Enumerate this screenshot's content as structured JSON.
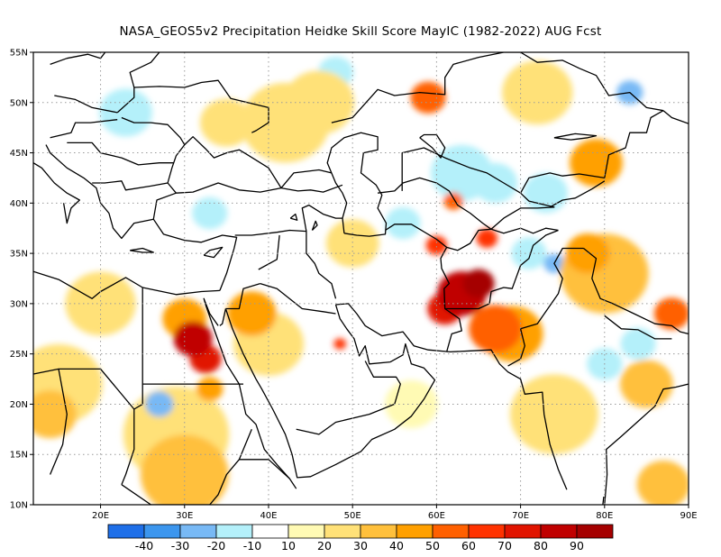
{
  "title": "NASA_GEOS5v2  Precipitation Heidke Skill Score MayIC (1982-2022) AUG Fcst",
  "map": {
    "lon_range": [
      12,
      90
    ],
    "lat_range": [
      10,
      55
    ],
    "lat_ticks": [
      {
        "value": 55,
        "label": "55N"
      },
      {
        "value": 50,
        "label": "50N"
      },
      {
        "value": 45,
        "label": "45N"
      },
      {
        "value": 40,
        "label": "40N"
      },
      {
        "value": 35,
        "label": "35N"
      },
      {
        "value": 30,
        "label": "30N"
      },
      {
        "value": 25,
        "label": "25N"
      },
      {
        "value": 20,
        "label": "20N"
      },
      {
        "value": 15,
        "label": "15N"
      },
      {
        "value": 10,
        "label": "10N"
      }
    ],
    "lon_ticks": [
      {
        "value": 20,
        "label": "20E"
      },
      {
        "value": 30,
        "label": "30E"
      },
      {
        "value": 40,
        "label": "40E"
      },
      {
        "value": 50,
        "label": "50E"
      },
      {
        "value": 60,
        "label": "60E"
      },
      {
        "value": 70,
        "label": "70E"
      },
      {
        "value": 80,
        "label": "80E"
      },
      {
        "value": 90,
        "label": "90E"
      }
    ],
    "gridlines": "dotted"
  },
  "colorbar": {
    "colors": [
      "#1e6fe8",
      "#3c96ee",
      "#78b9f5",
      "#b4f0fa",
      "#ffffff",
      "#fffab4",
      "#ffe178",
      "#ffc03c",
      "#ffa000",
      "#ff6000",
      "#ff3200",
      "#e11400",
      "#c00000",
      "#a50000"
    ],
    "labels": [
      "-40",
      "-30",
      "-20",
      "-10",
      "10",
      "20",
      "30",
      "40",
      "50",
      "60",
      "70",
      "80",
      "90"
    ]
  },
  "patches": [
    {
      "lon": 31,
      "lat": 26.5,
      "r": 2.2,
      "level": 80
    },
    {
      "lon": 32.5,
      "lat": 24.5,
      "r": 1.8,
      "level": 70
    },
    {
      "lon": 30,
      "lat": 28.5,
      "r": 2.5,
      "level": 40
    },
    {
      "lon": 33,
      "lat": 21.5,
      "r": 1.5,
      "level": 40
    },
    {
      "lon": 29,
      "lat": 17,
      "r": 6,
      "level": 20
    },
    {
      "lon": 30,
      "lat": 13,
      "r": 5,
      "level": 30
    },
    {
      "lon": 27,
      "lat": 20,
      "r": 1.6,
      "level": -20
    },
    {
      "lon": 38,
      "lat": 29,
      "r": 2.8,
      "level": 40
    },
    {
      "lon": 40,
      "lat": 26,
      "r": 4,
      "level": 20
    },
    {
      "lon": 63,
      "lat": 31,
      "r": 2.8,
      "level": 80
    },
    {
      "lon": 65,
      "lat": 32,
      "r": 1.8,
      "level": 90
    },
    {
      "lon": 61,
      "lat": 29.5,
      "r": 2,
      "level": 70
    },
    {
      "lon": 67,
      "lat": 27.5,
      "r": 3,
      "level": 50
    },
    {
      "lon": 69,
      "lat": 27,
      "r": 3.5,
      "level": 40
    },
    {
      "lon": 60,
      "lat": 35.8,
      "r": 1.2,
      "level": 60
    },
    {
      "lon": 66,
      "lat": 36.5,
      "r": 1.2,
      "level": 60
    },
    {
      "lon": 62,
      "lat": 40.2,
      "r": 1.1,
      "level": 50
    },
    {
      "lon": 48.5,
      "lat": 26,
      "r": 0.7,
      "level": 60
    },
    {
      "lon": 59,
      "lat": 50.5,
      "r": 2,
      "level": 50
    },
    {
      "lon": 42,
      "lat": 48,
      "r": 5,
      "level": 20
    },
    {
      "lon": 46,
      "lat": 50,
      "r": 4,
      "level": 20
    },
    {
      "lon": 72,
      "lat": 51,
      "r": 4,
      "level": 20
    },
    {
      "lon": 79,
      "lat": 44,
      "r": 3,
      "level": 40
    },
    {
      "lon": 80,
      "lat": 33,
      "r": 5,
      "level": 30
    },
    {
      "lon": 78,
      "lat": 35,
      "r": 2.5,
      "level": 40
    },
    {
      "lon": 15,
      "lat": 22,
      "r": 5,
      "level": 20
    },
    {
      "lon": 14,
      "lat": 19,
      "r": 3,
      "level": 30
    },
    {
      "lon": 20,
      "lat": 30,
      "r": 4,
      "level": 20
    },
    {
      "lon": 85,
      "lat": 22,
      "r": 3,
      "level": 30
    },
    {
      "lon": 74,
      "lat": 19,
      "r": 5,
      "level": 20
    },
    {
      "lon": 57,
      "lat": 20,
      "r": 3,
      "level": 10
    },
    {
      "lon": 88,
      "lat": 29,
      "r": 2,
      "level": 50
    },
    {
      "lon": 87,
      "lat": 12,
      "r": 3,
      "level": 30
    },
    {
      "lon": 50,
      "lat": 36,
      "r": 3,
      "level": 20
    },
    {
      "lon": 35,
      "lat": 48,
      "r": 3,
      "level": 20
    },
    {
      "lon": 63,
      "lat": 43,
      "r": 3.5,
      "level": -10
    },
    {
      "lon": 67,
      "lat": 42,
      "r": 2.5,
      "level": -10
    },
    {
      "lon": 73,
      "lat": 41,
      "r": 2.5,
      "level": -10
    },
    {
      "lon": 71,
      "lat": 35,
      "r": 2,
      "level": -10
    },
    {
      "lon": 80,
      "lat": 24,
      "r": 2,
      "level": -10
    },
    {
      "lon": 84,
      "lat": 26,
      "r": 2,
      "level": -10
    },
    {
      "lon": 48,
      "lat": 53,
      "r": 2,
      "level": -10
    },
    {
      "lon": 23,
      "lat": 49,
      "r": 3,
      "level": -10
    },
    {
      "lon": 56,
      "lat": 38,
      "r": 2,
      "level": -10
    },
    {
      "lon": 33,
      "lat": 39,
      "r": 2,
      "level": -10
    },
    {
      "lon": 83,
      "lat": 51,
      "r": 1.5,
      "level": -20
    },
    {
      "lon": 74,
      "lat": 34,
      "r": 1.2,
      "level": -20
    },
    {
      "lon": 52,
      "lat": 36.5,
      "r": 1,
      "level": -10
    }
  ]
}
